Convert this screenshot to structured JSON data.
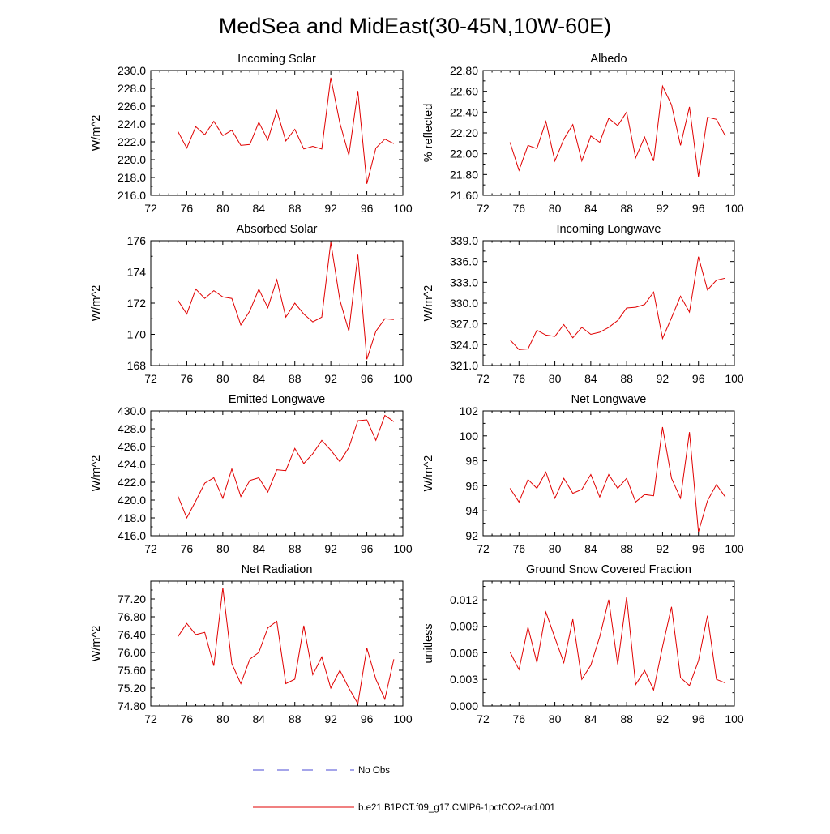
{
  "page": {
    "title": "MedSea and MidEast(30-45N,10W-60E)"
  },
  "legend": {
    "entries": [
      {
        "label": "No Obs",
        "color": "#4b4bd6",
        "style": "dashed"
      },
      {
        "label": "b.e21.B1PCT.f09_g17.CMIP6-1pctCO2-rad.001",
        "color": "#e00000",
        "style": "solid"
      }
    ]
  },
  "colors": {
    "series": "#e00000",
    "no_obs": "#4b4bd6",
    "axis": "#000000"
  },
  "chart_data": [
    {
      "type": "line",
      "title": "Incoming Solar",
      "ylabel": "W/m^2",
      "xlim": [
        72,
        100
      ],
      "ylim": [
        216,
        230
      ],
      "xticks": [
        "72",
        "76",
        "80",
        "84",
        "88",
        "92",
        "96",
        "100"
      ],
      "yticks": [
        "216.0",
        "218.0",
        "220.0",
        "222.0",
        "224.0",
        "226.0",
        "228.0",
        "230.0"
      ],
      "x": [
        75,
        76,
        77,
        78,
        79,
        80,
        81,
        82,
        83,
        84,
        85,
        86,
        87,
        88,
        89,
        90,
        91,
        92,
        93,
        94,
        95,
        96,
        97,
        98,
        99
      ],
      "series": [
        {
          "values": [
            223.2,
            221.3,
            223.7,
            222.8,
            224.3,
            222.7,
            223.3,
            221.6,
            221.7,
            224.2,
            222.2,
            225.5,
            222.1,
            223.4,
            221.2,
            221.5,
            221.2,
            229.2,
            224.1,
            220.5,
            227.7,
            217.3,
            221.3,
            222.3,
            221.8
          ]
        }
      ]
    },
    {
      "type": "line",
      "title": "Albedo",
      "ylabel": "% reflected",
      "xlim": [
        72,
        100
      ],
      "ylim": [
        21.6,
        22.8
      ],
      "xticks": [
        "72",
        "76",
        "80",
        "84",
        "88",
        "92",
        "96",
        "100"
      ],
      "yticks": [
        "21.60",
        "21.80",
        "22.00",
        "22.20",
        "22.40",
        "22.60",
        "22.80"
      ],
      "x": [
        75,
        76,
        77,
        78,
        79,
        80,
        81,
        82,
        83,
        84,
        85,
        86,
        87,
        88,
        89,
        90,
        91,
        92,
        93,
        94,
        95,
        96,
        97,
        98,
        99
      ],
      "series": [
        {
          "values": [
            22.11,
            21.84,
            22.08,
            22.05,
            22.31,
            21.93,
            22.14,
            22.28,
            21.93,
            22.17,
            22.11,
            22.34,
            22.27,
            22.4,
            21.96,
            22.16,
            21.93,
            22.65,
            22.47,
            22.08,
            22.45,
            21.78,
            22.35,
            22.33,
            22.17
          ]
        }
      ]
    },
    {
      "type": "line",
      "title": "Absorbed Solar",
      "ylabel": "W/m^2",
      "xlim": [
        72,
        100
      ],
      "ylim": [
        168,
        176
      ],
      "xticks": [
        "72",
        "76",
        "80",
        "84",
        "88",
        "92",
        "96",
        "100"
      ],
      "yticks": [
        "168",
        "170",
        "172",
        "174",
        "176"
      ],
      "x": [
        75,
        76,
        77,
        78,
        79,
        80,
        81,
        82,
        83,
        84,
        85,
        86,
        87,
        88,
        89,
        90,
        91,
        92,
        93,
        94,
        95,
        96,
        97,
        98,
        99
      ],
      "series": [
        {
          "values": [
            172.2,
            171.3,
            172.9,
            172.3,
            172.8,
            172.4,
            172.3,
            170.6,
            171.5,
            172.9,
            171.7,
            173.5,
            171.1,
            172.0,
            171.3,
            170.8,
            171.1,
            175.9,
            172.2,
            170.2,
            175.1,
            168.4,
            170.2,
            171.0,
            170.95
          ]
        }
      ]
    },
    {
      "type": "line",
      "title": "Incoming Longwave",
      "ylabel": "W/m^2",
      "xlim": [
        72,
        100
      ],
      "ylim": [
        321,
        339
      ],
      "xticks": [
        "72",
        "76",
        "80",
        "84",
        "88",
        "92",
        "96",
        "100"
      ],
      "yticks": [
        "321.0",
        "324.0",
        "327.0",
        "330.0",
        "333.0",
        "336.0",
        "339.0"
      ],
      "x": [
        75,
        76,
        77,
        78,
        79,
        80,
        81,
        82,
        83,
        84,
        85,
        86,
        87,
        88,
        89,
        90,
        91,
        92,
        93,
        94,
        95,
        96,
        97,
        98,
        99
      ],
      "series": [
        {
          "values": [
            324.7,
            323.3,
            323.4,
            326.1,
            325.4,
            325.2,
            326.9,
            325.0,
            326.5,
            325.5,
            325.8,
            326.5,
            327.5,
            329.3,
            329.4,
            329.8,
            331.6,
            324.9,
            327.9,
            331.0,
            328.7,
            336.7,
            331.9,
            333.3,
            333.6
          ]
        }
      ]
    },
    {
      "type": "line",
      "title": "Emitted Longwave",
      "ylabel": "W/m^2",
      "xlim": [
        72,
        100
      ],
      "ylim": [
        416,
        430
      ],
      "xticks": [
        "72",
        "76",
        "80",
        "84",
        "88",
        "92",
        "96",
        "100"
      ],
      "yticks": [
        "416.0",
        "418.0",
        "420.0",
        "422.0",
        "424.0",
        "426.0",
        "428.0",
        "430.0"
      ],
      "x": [
        75,
        76,
        77,
        78,
        79,
        80,
        81,
        82,
        83,
        84,
        85,
        86,
        87,
        88,
        89,
        90,
        91,
        92,
        93,
        94,
        95,
        96,
        97,
        98,
        99
      ],
      "series": [
        {
          "values": [
            420.5,
            418.0,
            419.9,
            421.9,
            422.5,
            420.2,
            423.5,
            420.4,
            422.2,
            422.5,
            420.9,
            423.4,
            423.3,
            425.8,
            424.1,
            425.2,
            426.7,
            425.6,
            424.3,
            425.9,
            428.9,
            429.0,
            426.7,
            429.5,
            428.8
          ]
        }
      ]
    },
    {
      "type": "line",
      "title": "Net Longwave",
      "ylabel": "W/m^2",
      "xlim": [
        72,
        100
      ],
      "ylim": [
        92,
        102
      ],
      "xticks": [
        "72",
        "76",
        "80",
        "84",
        "88",
        "92",
        "96",
        "100"
      ],
      "yticks": [
        "92",
        "94",
        "96",
        "98",
        "100",
        "102"
      ],
      "x": [
        75,
        76,
        77,
        78,
        79,
        80,
        81,
        82,
        83,
        84,
        85,
        86,
        87,
        88,
        89,
        90,
        91,
        92,
        93,
        94,
        95,
        96,
        97,
        98,
        99
      ],
      "series": [
        {
          "values": [
            95.8,
            94.7,
            96.5,
            95.8,
            97.1,
            95.0,
            96.6,
            95.4,
            95.7,
            96.9,
            95.1,
            96.9,
            95.8,
            96.6,
            94.7,
            95.3,
            95.2,
            100.7,
            96.6,
            95.0,
            100.3,
            92.3,
            94.8,
            96.1,
            95.1
          ]
        }
      ]
    },
    {
      "type": "line",
      "title": "Net Radiation",
      "ylabel": "W/m^2",
      "xlim": [
        72,
        100
      ],
      "ylim": [
        74.8,
        77.6
      ],
      "xticks": [
        "72",
        "76",
        "80",
        "84",
        "88",
        "92",
        "96",
        "100"
      ],
      "yticks": [
        "74.80",
        "75.20",
        "75.60",
        "76.00",
        "76.40",
        "76.80",
        "77.20"
      ],
      "x": [
        75,
        76,
        77,
        78,
        79,
        80,
        81,
        82,
        83,
        84,
        85,
        86,
        87,
        88,
        89,
        90,
        91,
        92,
        93,
        94,
        95,
        96,
        97,
        98,
        99
      ],
      "series": [
        {
          "values": [
            76.35,
            76.65,
            76.4,
            76.45,
            75.7,
            77.45,
            75.75,
            75.3,
            75.85,
            76.0,
            76.55,
            76.7,
            75.3,
            75.4,
            76.6,
            75.5,
            75.9,
            75.2,
            75.6,
            75.2,
            74.85,
            76.1,
            75.4,
            74.95,
            75.85
          ]
        }
      ]
    },
    {
      "type": "line",
      "title": "Ground Snow Covered Fraction",
      "ylabel": "unitless",
      "xlim": [
        72,
        100
      ],
      "ylim": [
        0,
        0.0141
      ],
      "xticks": [
        "72",
        "76",
        "80",
        "84",
        "88",
        "92",
        "96",
        "100"
      ],
      "yticks": [
        "0.000",
        "0.003",
        "0.006",
        "0.009",
        "0.012"
      ],
      "x": [
        75,
        76,
        77,
        78,
        79,
        80,
        81,
        82,
        83,
        84,
        85,
        86,
        87,
        88,
        89,
        90,
        91,
        92,
        93,
        94,
        95,
        96,
        97,
        98,
        99
      ],
      "series": [
        {
          "values": [
            0.0061,
            0.0041,
            0.0089,
            0.0049,
            0.0106,
            0.0077,
            0.0049,
            0.0098,
            0.003,
            0.0046,
            0.0078,
            0.012,
            0.0047,
            0.0123,
            0.0024,
            0.004,
            0.0018,
            0.0067,
            0.0112,
            0.0032,
            0.0023,
            0.0051,
            0.0102,
            0.003,
            0.0026
          ]
        }
      ]
    }
  ]
}
